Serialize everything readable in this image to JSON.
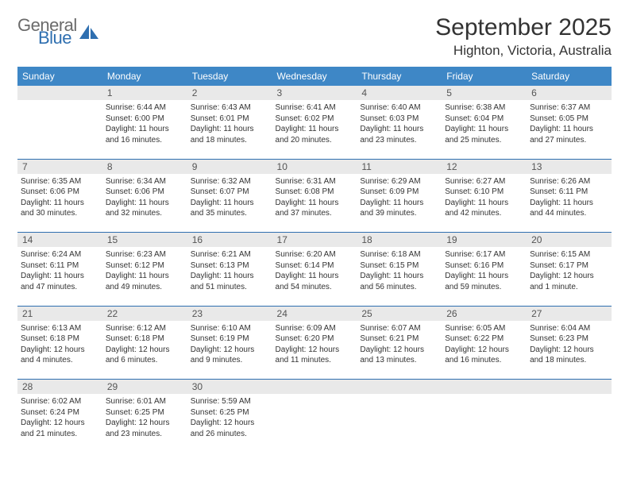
{
  "brand": {
    "general": "General",
    "blue": "Blue",
    "sail_color": "#2f6fb0"
  },
  "title": "September 2025",
  "location": "Highton, Victoria, Australia",
  "colors": {
    "header_bg": "#3e87c6",
    "row_border": "#2f6fb0",
    "daynum_bg": "#e9e9e9",
    "text": "#333333"
  },
  "weekdays": [
    "Sunday",
    "Monday",
    "Tuesday",
    "Wednesday",
    "Thursday",
    "Friday",
    "Saturday"
  ],
  "weeks": [
    {
      "nums": [
        "",
        "1",
        "2",
        "3",
        "4",
        "5",
        "6"
      ],
      "cells": [
        {
          "sunrise": "",
          "sunset": "",
          "daylight": ""
        },
        {
          "sunrise": "Sunrise: 6:44 AM",
          "sunset": "Sunset: 6:00 PM",
          "daylight": "Daylight: 11 hours and 16 minutes."
        },
        {
          "sunrise": "Sunrise: 6:43 AM",
          "sunset": "Sunset: 6:01 PM",
          "daylight": "Daylight: 11 hours and 18 minutes."
        },
        {
          "sunrise": "Sunrise: 6:41 AM",
          "sunset": "Sunset: 6:02 PM",
          "daylight": "Daylight: 11 hours and 20 minutes."
        },
        {
          "sunrise": "Sunrise: 6:40 AM",
          "sunset": "Sunset: 6:03 PM",
          "daylight": "Daylight: 11 hours and 23 minutes."
        },
        {
          "sunrise": "Sunrise: 6:38 AM",
          "sunset": "Sunset: 6:04 PM",
          "daylight": "Daylight: 11 hours and 25 minutes."
        },
        {
          "sunrise": "Sunrise: 6:37 AM",
          "sunset": "Sunset: 6:05 PM",
          "daylight": "Daylight: 11 hours and 27 minutes."
        }
      ]
    },
    {
      "nums": [
        "7",
        "8",
        "9",
        "10",
        "11",
        "12",
        "13"
      ],
      "cells": [
        {
          "sunrise": "Sunrise: 6:35 AM",
          "sunset": "Sunset: 6:06 PM",
          "daylight": "Daylight: 11 hours and 30 minutes."
        },
        {
          "sunrise": "Sunrise: 6:34 AM",
          "sunset": "Sunset: 6:06 PM",
          "daylight": "Daylight: 11 hours and 32 minutes."
        },
        {
          "sunrise": "Sunrise: 6:32 AM",
          "sunset": "Sunset: 6:07 PM",
          "daylight": "Daylight: 11 hours and 35 minutes."
        },
        {
          "sunrise": "Sunrise: 6:31 AM",
          "sunset": "Sunset: 6:08 PM",
          "daylight": "Daylight: 11 hours and 37 minutes."
        },
        {
          "sunrise": "Sunrise: 6:29 AM",
          "sunset": "Sunset: 6:09 PM",
          "daylight": "Daylight: 11 hours and 39 minutes."
        },
        {
          "sunrise": "Sunrise: 6:27 AM",
          "sunset": "Sunset: 6:10 PM",
          "daylight": "Daylight: 11 hours and 42 minutes."
        },
        {
          "sunrise": "Sunrise: 6:26 AM",
          "sunset": "Sunset: 6:11 PM",
          "daylight": "Daylight: 11 hours and 44 minutes."
        }
      ]
    },
    {
      "nums": [
        "14",
        "15",
        "16",
        "17",
        "18",
        "19",
        "20"
      ],
      "cells": [
        {
          "sunrise": "Sunrise: 6:24 AM",
          "sunset": "Sunset: 6:11 PM",
          "daylight": "Daylight: 11 hours and 47 minutes."
        },
        {
          "sunrise": "Sunrise: 6:23 AM",
          "sunset": "Sunset: 6:12 PM",
          "daylight": "Daylight: 11 hours and 49 minutes."
        },
        {
          "sunrise": "Sunrise: 6:21 AM",
          "sunset": "Sunset: 6:13 PM",
          "daylight": "Daylight: 11 hours and 51 minutes."
        },
        {
          "sunrise": "Sunrise: 6:20 AM",
          "sunset": "Sunset: 6:14 PM",
          "daylight": "Daylight: 11 hours and 54 minutes."
        },
        {
          "sunrise": "Sunrise: 6:18 AM",
          "sunset": "Sunset: 6:15 PM",
          "daylight": "Daylight: 11 hours and 56 minutes."
        },
        {
          "sunrise": "Sunrise: 6:17 AM",
          "sunset": "Sunset: 6:16 PM",
          "daylight": "Daylight: 11 hours and 59 minutes."
        },
        {
          "sunrise": "Sunrise: 6:15 AM",
          "sunset": "Sunset: 6:17 PM",
          "daylight": "Daylight: 12 hours and 1 minute."
        }
      ]
    },
    {
      "nums": [
        "21",
        "22",
        "23",
        "24",
        "25",
        "26",
        "27"
      ],
      "cells": [
        {
          "sunrise": "Sunrise: 6:13 AM",
          "sunset": "Sunset: 6:18 PM",
          "daylight": "Daylight: 12 hours and 4 minutes."
        },
        {
          "sunrise": "Sunrise: 6:12 AM",
          "sunset": "Sunset: 6:18 PM",
          "daylight": "Daylight: 12 hours and 6 minutes."
        },
        {
          "sunrise": "Sunrise: 6:10 AM",
          "sunset": "Sunset: 6:19 PM",
          "daylight": "Daylight: 12 hours and 9 minutes."
        },
        {
          "sunrise": "Sunrise: 6:09 AM",
          "sunset": "Sunset: 6:20 PM",
          "daylight": "Daylight: 12 hours and 11 minutes."
        },
        {
          "sunrise": "Sunrise: 6:07 AM",
          "sunset": "Sunset: 6:21 PM",
          "daylight": "Daylight: 12 hours and 13 minutes."
        },
        {
          "sunrise": "Sunrise: 6:05 AM",
          "sunset": "Sunset: 6:22 PM",
          "daylight": "Daylight: 12 hours and 16 minutes."
        },
        {
          "sunrise": "Sunrise: 6:04 AM",
          "sunset": "Sunset: 6:23 PM",
          "daylight": "Daylight: 12 hours and 18 minutes."
        }
      ]
    },
    {
      "nums": [
        "28",
        "29",
        "30",
        "",
        "",
        "",
        ""
      ],
      "cells": [
        {
          "sunrise": "Sunrise: 6:02 AM",
          "sunset": "Sunset: 6:24 PM",
          "daylight": "Daylight: 12 hours and 21 minutes."
        },
        {
          "sunrise": "Sunrise: 6:01 AM",
          "sunset": "Sunset: 6:25 PM",
          "daylight": "Daylight: 12 hours and 23 minutes."
        },
        {
          "sunrise": "Sunrise: 5:59 AM",
          "sunset": "Sunset: 6:25 PM",
          "daylight": "Daylight: 12 hours and 26 minutes."
        },
        {
          "sunrise": "",
          "sunset": "",
          "daylight": ""
        },
        {
          "sunrise": "",
          "sunset": "",
          "daylight": ""
        },
        {
          "sunrise": "",
          "sunset": "",
          "daylight": ""
        },
        {
          "sunrise": "",
          "sunset": "",
          "daylight": ""
        }
      ]
    }
  ]
}
